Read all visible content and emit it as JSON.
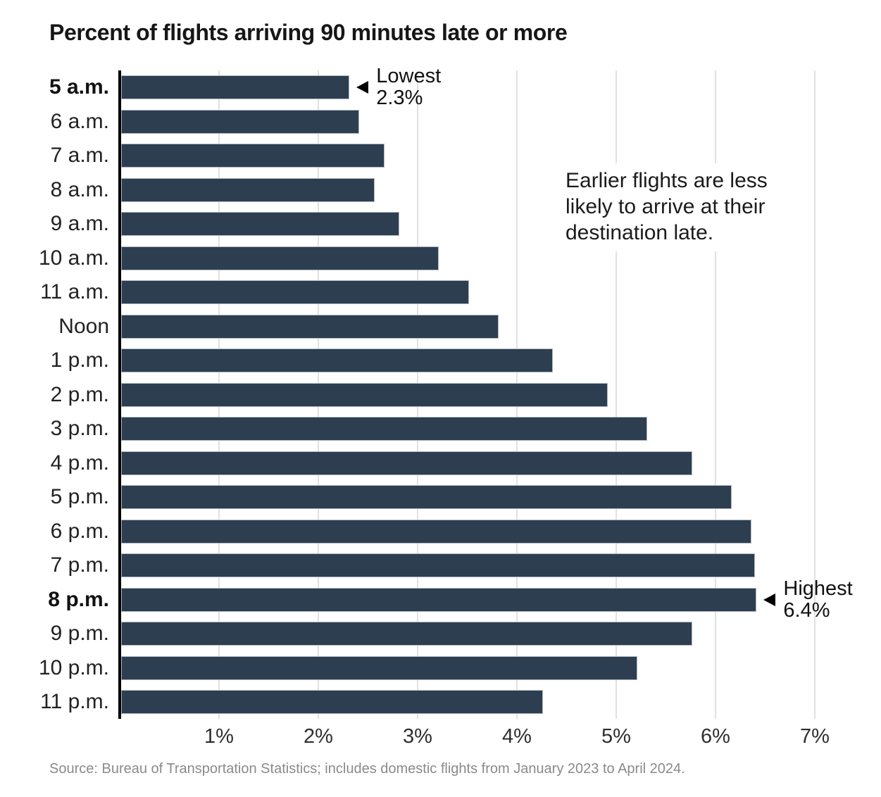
{
  "title": "Percent of flights arriving 90 minutes late or more",
  "source": "Source: Bureau of Transportation Statistics; includes domestic flights from January 2023 to April 2024.",
  "colors": {
    "bar": "#2d3e50",
    "bar_border": "#c6ced6",
    "grid": "#e1e1e1",
    "axis": "#000000",
    "title_text": "#161616",
    "label_text": "#222222",
    "annotation_text": "#101010",
    "source_text": "#8a8a8a"
  },
  "chart_data": {
    "type": "bar",
    "orientation": "horizontal",
    "title": "Percent of flights arriving 90 minutes late or more",
    "categories": [
      "5 a.m.",
      "6 a.m.",
      "7 a.m.",
      "8 a.m.",
      "9 a.m.",
      "10 a.m.",
      "11 a.m.",
      "Noon",
      "1 p.m.",
      "2 p.m.",
      "3 p.m.",
      "4 p.m.",
      "5 p.m.",
      "6 p.m.",
      "7 p.m.",
      "8 p.m.",
      "9 p.m.",
      "10 p.m.",
      "11 p.m."
    ],
    "values": [
      2.3,
      2.4,
      2.65,
      2.55,
      2.8,
      3.2,
      3.5,
      3.8,
      4.35,
      4.9,
      5.3,
      5.75,
      6.15,
      6.35,
      6.38,
      6.4,
      5.75,
      5.2,
      4.25
    ],
    "unit": "%",
    "bold_categories": [
      "5 a.m.",
      "8 p.m."
    ],
    "x_ticks": [
      "1%",
      "2%",
      "3%",
      "4%",
      "5%",
      "6%",
      "7%"
    ],
    "x_tick_values": [
      1,
      2,
      3,
      4,
      5,
      6,
      7
    ],
    "xlim": [
      0,
      7.65
    ],
    "gridlines": "vertical",
    "legend": "none",
    "annotations": [
      {
        "target": "5 a.m.",
        "target_index": 0,
        "label": "Lowest",
        "value_text": "2.3%",
        "marker": "left-arrow"
      },
      {
        "target": "8 p.m.",
        "target_index": 15,
        "label": "Highest",
        "value_text": "6.4%",
        "marker": "left-arrow"
      }
    ],
    "note": [
      "Earlier flights are less",
      "likely to arrive at their",
      "destination late."
    ]
  }
}
